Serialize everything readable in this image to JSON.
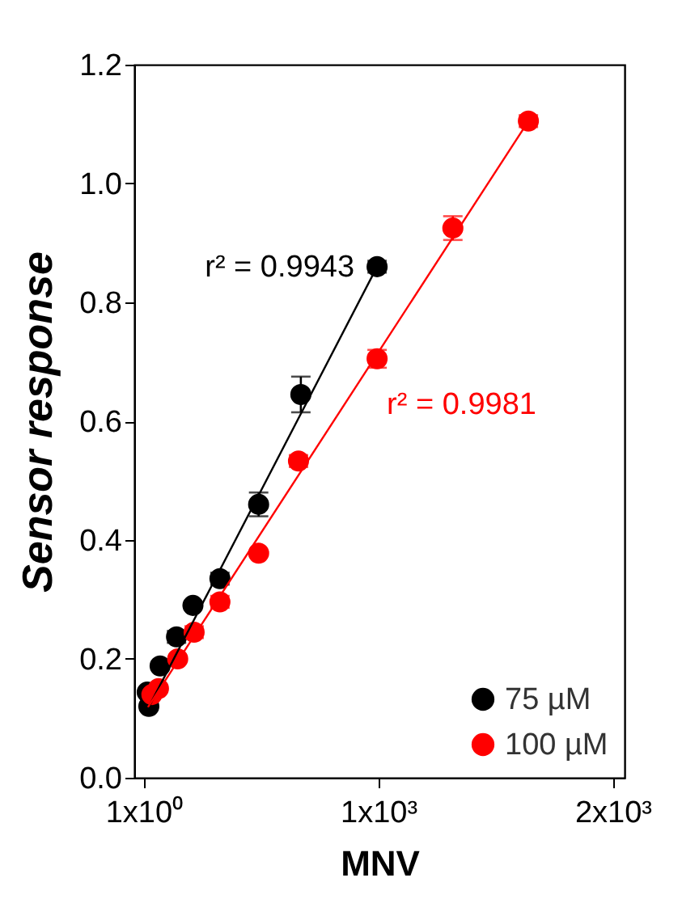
{
  "chart_data": {
    "type": "scatter",
    "xlabel": "MNV",
    "ylabel": "Sensor response",
    "xlim": [
      -40,
      2050
    ],
    "ylim": [
      0,
      1.2
    ],
    "xticks": [
      {
        "value": 1,
        "label": "1x10⁰"
      },
      {
        "value": 1000,
        "label": "1x10³"
      },
      {
        "value": 2000,
        "label": "2x10³"
      }
    ],
    "yticks": [
      {
        "value": 0,
        "label": "0.0"
      },
      0.2,
      0.4,
      0.6,
      0.8,
      {
        "value": 1,
        "label": "1.0"
      },
      1.2
    ],
    "grid": false,
    "legend": "bottom right",
    "series": [
      {
        "name": "75 µM",
        "color": "#000000",
        "marker": "circle",
        "x": [
          15,
          22,
          70,
          140,
          210,
          325,
          490,
          670,
          995
        ],
        "values": [
          0.144,
          0.12,
          0.188,
          0.237,
          0.29,
          0.335,
          0.46,
          0.645,
          0.86
        ],
        "errors": [
          null,
          null,
          null,
          0.01,
          null,
          0.01,
          0.02,
          0.03,
          0.01
        ]
      },
      {
        "name": "100 µM",
        "color": "#ff0000",
        "marker": "circle",
        "x": [
          35,
          63,
          145,
          215,
          325,
          490,
          660,
          995,
          1318,
          1640
        ],
        "values": [
          0.14,
          0.15,
          0.2,
          0.245,
          0.296,
          0.378,
          0.533,
          0.705,
          0.925,
          1.105
        ],
        "errors": [
          null,
          null,
          null,
          0.01,
          0.01,
          null,
          0.01,
          0.015,
          0.02,
          0.01
        ]
      },
      {
        "type": "line",
        "color": "#000000",
        "x": [
          10,
          995
        ],
        "values": [
          0.11,
          0.86
        ]
      },
      {
        "type": "line",
        "color": "#ff0000",
        "x": [
          20,
          1640
        ],
        "values": [
          0.12,
          1.105
        ]
      }
    ],
    "annotations": [
      "r² = 0.9943",
      "r² = 0.9981"
    ]
  }
}
